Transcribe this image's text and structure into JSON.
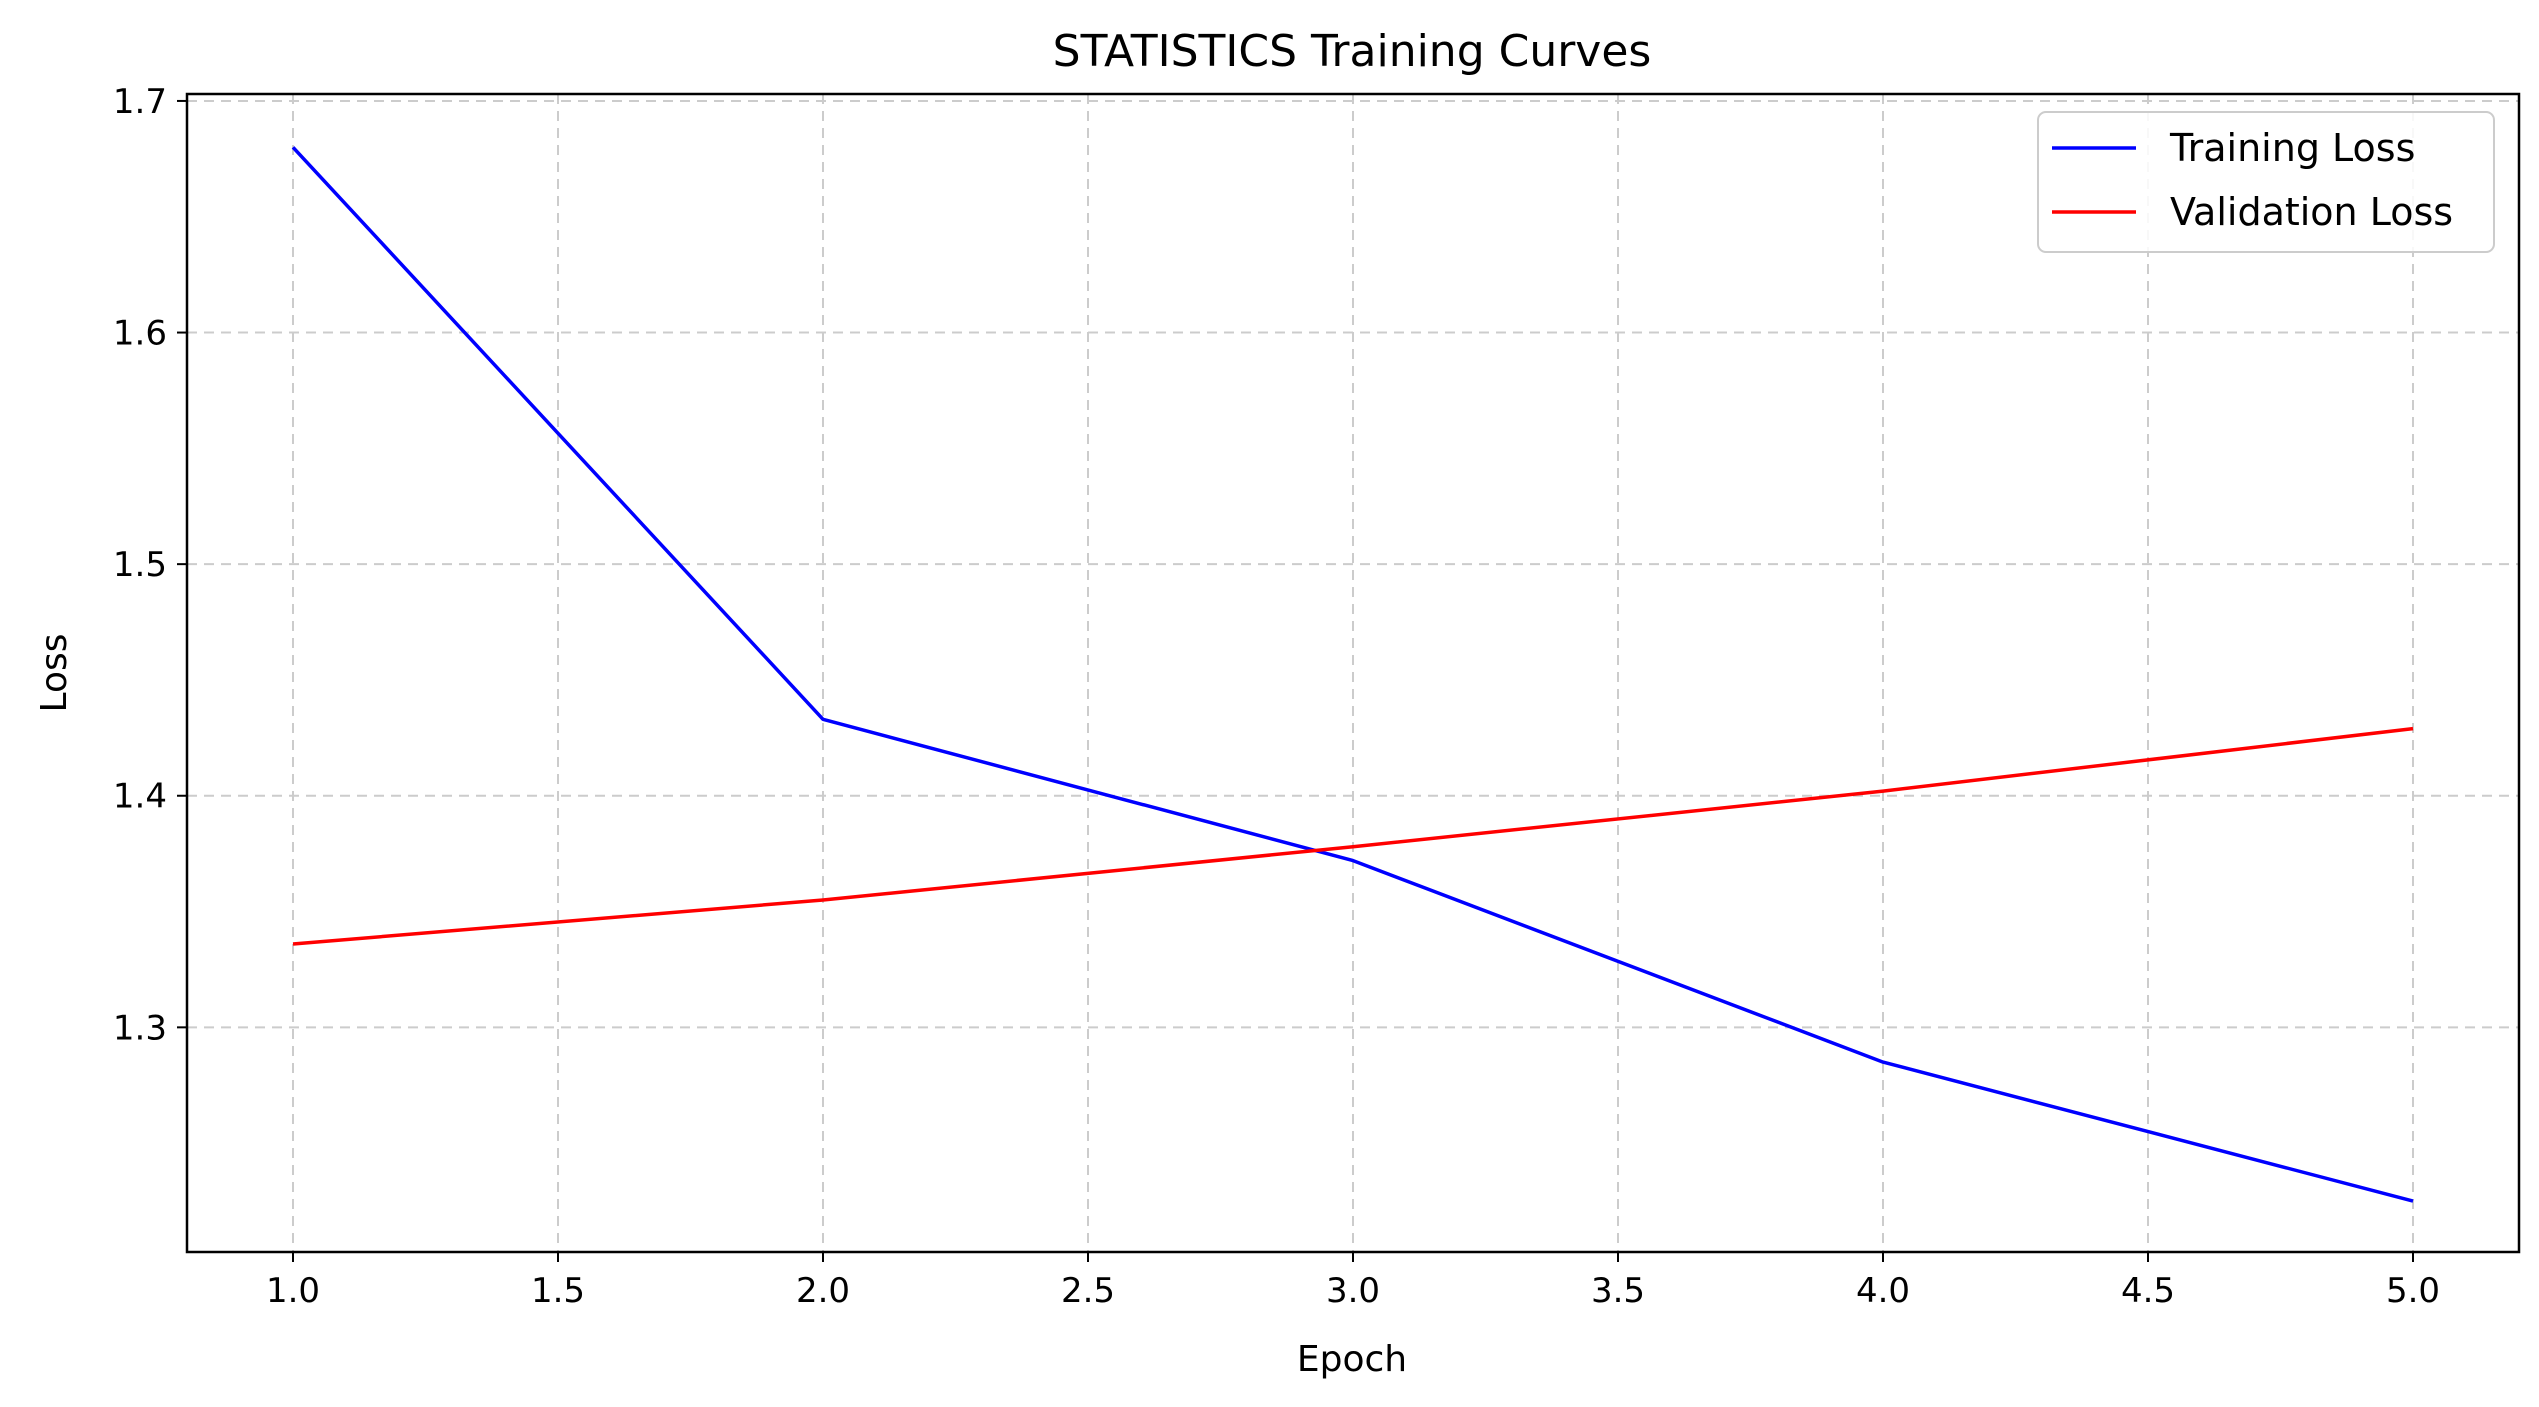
{
  "chart_data": {
    "type": "line",
    "title": "STATISTICS Training Curves",
    "xlabel": "Epoch",
    "ylabel": "Loss",
    "xlim": [
      0.8,
      5.2
    ],
    "ylim": [
      1.203,
      1.703
    ],
    "xticks": [
      1.0,
      1.5,
      2.0,
      2.5,
      3.0,
      3.5,
      4.0,
      4.5,
      5.0
    ],
    "yticks": [
      1.3,
      1.4,
      1.5,
      1.6,
      1.7
    ],
    "x": [
      1,
      2,
      3,
      4,
      5
    ],
    "grid": true,
    "legend_position": "top-right",
    "series": [
      {
        "name": "Training Loss",
        "color": "#0000ff",
        "values": [
          1.68,
          1.433,
          1.372,
          1.285,
          1.225
        ]
      },
      {
        "name": "Validation Loss",
        "color": "#ff0000",
        "values": [
          1.336,
          1.355,
          1.378,
          1.402,
          1.429
        ]
      }
    ]
  }
}
